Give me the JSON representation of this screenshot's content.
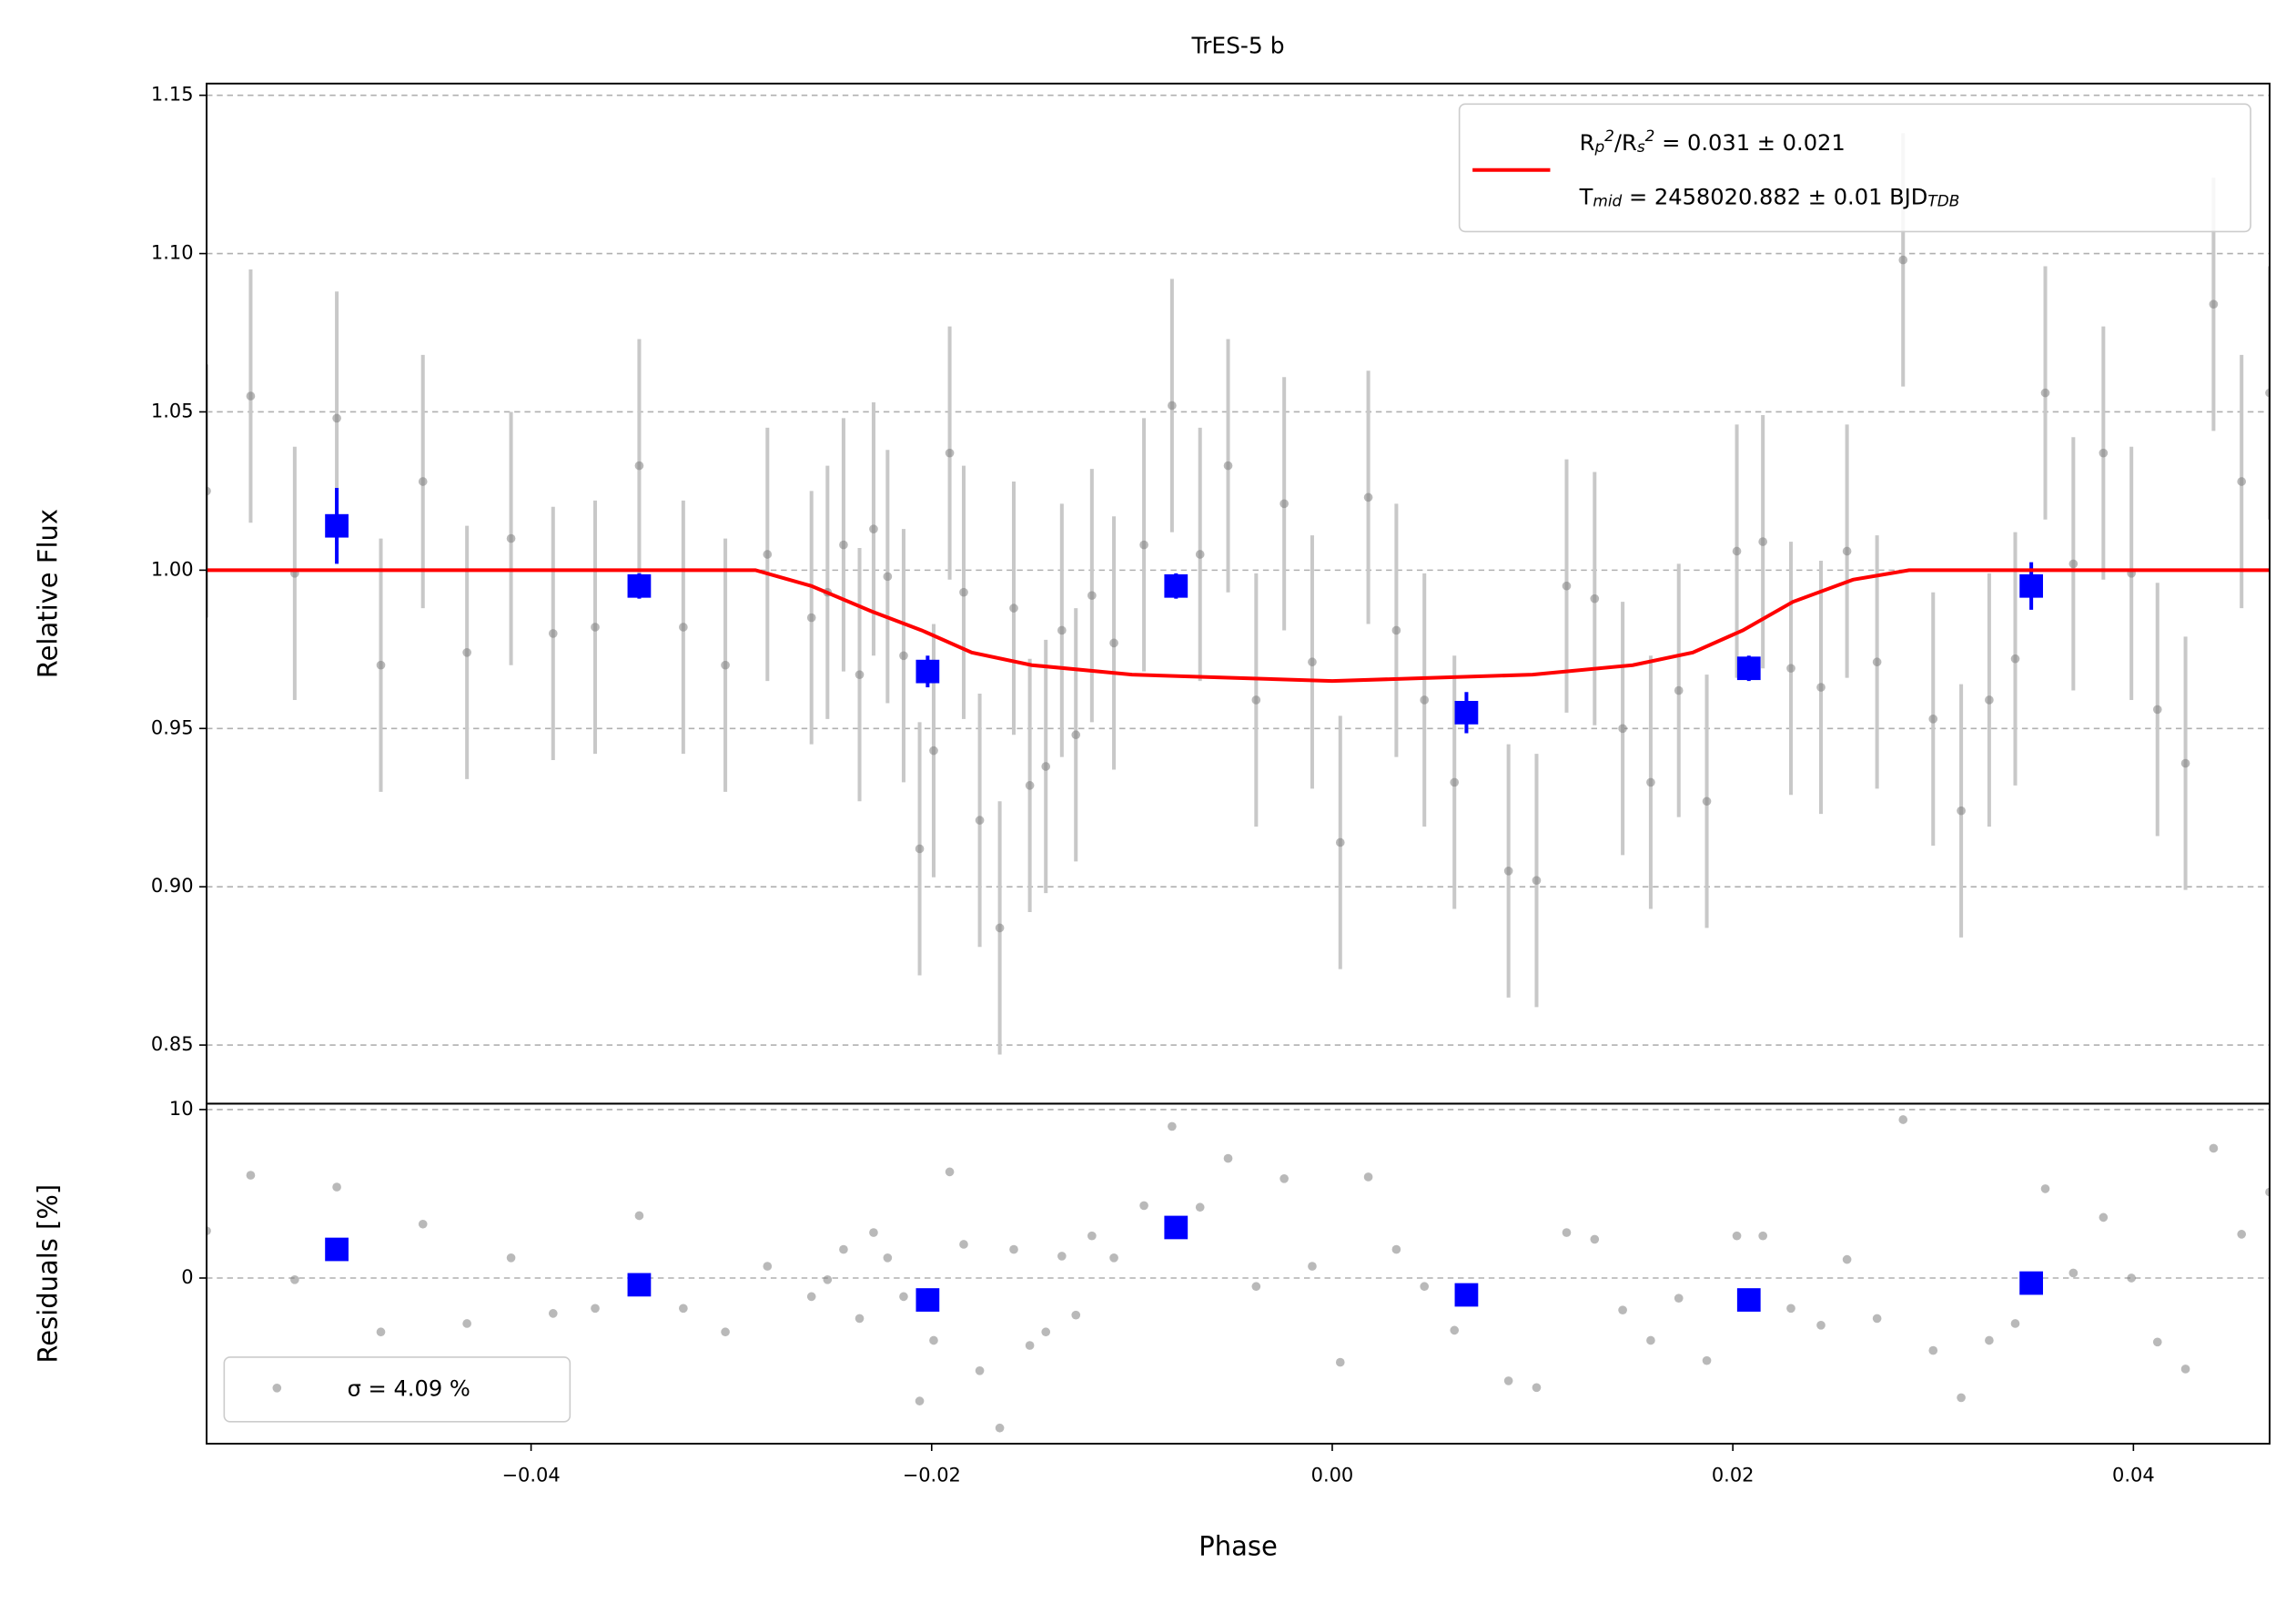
{
  "chart_data": [
    {
      "type": "scatter",
      "title": "TrES-5 b",
      "ylabel": "Relative Flux",
      "xlim": [
        -0.0562,
        0.0468
      ],
      "ylim": [
        0.8315,
        1.1537
      ],
      "yticks": [
        0.85,
        {
          "value": 0.9,
          "label": "0.90"
        },
        0.95,
        {
          "value": 1.0,
          "label": "1.00"
        },
        1.05,
        {
          "value": 1.1,
          "label": "1.10"
        },
        1.15
      ],
      "grid": true,
      "legend": "upper right",
      "series": [
        {
          "color": "#808080",
          "yerr": 0.04,
          "x": [
            -0.0562,
            -0.054,
            -0.0518,
            -0.0497,
            -0.0475,
            -0.0454,
            -0.0432,
            -0.041,
            -0.0389,
            -0.0368,
            -0.0346,
            -0.0324,
            -0.0303,
            -0.0282,
            -0.026,
            -0.0252,
            -0.0244,
            -0.0236,
            -0.0229,
            -0.0222,
            -0.0214,
            -0.0206,
            -0.0199,
            -0.0191,
            -0.0184,
            -0.0176,
            -0.0166,
            -0.0159,
            -0.0151,
            -0.0143,
            -0.0135,
            -0.0128,
            -0.012,
            -0.0109,
            -0.0094,
            -0.008,
            -0.0066,
            -0.0052,
            -0.0038,
            -0.0024,
            -0.001,
            0.0004,
            0.0018,
            0.0032,
            0.0046,
            0.0061,
            0.0088,
            0.0102,
            0.0117,
            0.0131,
            0.0145,
            0.0159,
            0.0173,
            0.0187,
            0.0202,
            0.0215,
            0.0229,
            0.0244,
            0.0257,
            0.0272,
            0.0285,
            0.03,
            0.0314,
            0.0328,
            0.0341,
            0.0356,
            0.037,
            0.0385,
            0.0399,
            0.0412,
            0.0426,
            0.044,
            0.0454,
            0.0468
          ],
          "values": [
            1.025,
            1.055,
            0.999,
            1.048,
            0.97,
            1.028,
            0.974,
            1.01,
            0.98,
            0.982,
            1.033,
            0.982,
            0.97,
            1.005,
            0.985,
            0.993,
            1.008,
            0.967,
            1.013,
            0.998,
            0.973,
            0.912,
            0.943,
            1.037,
            0.993,
            0.921,
            0.887,
            0.988,
            0.932,
            0.938,
            0.981,
            0.948,
            0.992,
            0.977,
            1.008,
            1.052,
            1.005,
            1.033,
            0.959,
            1.021,
            0.971,
            0.914,
            1.023,
            0.981,
            0.959,
            0.933,
            0.905,
            0.902,
            0.995,
            0.991,
            0.95,
            0.933,
            0.962,
            0.927,
            1.006,
            1.009,
            0.969,
            0.963,
            1.006,
            0.971,
            1.098,
            0.953,
            0.924,
            0.959,
            0.972,
            1.056,
            1.002,
            1.037,
            0.999,
            0.956,
            0.939,
            1.084,
            1.028,
            1.056
          ]
        },
        {
          "color": "#0000ff",
          "x": [
            -0.0497,
            -0.0346,
            -0.0202,
            -0.0078,
            0.0067,
            0.0208,
            0.0349
          ],
          "values": [
            1.014,
            0.995,
            0.968,
            0.995,
            0.955,
            0.969,
            0.995
          ],
          "yerr": [
            0.012,
            0.004,
            0.005,
            0.004,
            0.0065,
            0.004,
            0.0075
          ]
        },
        {
          "name": [
            "R_p^2/R_s^2 = 0.031 ± 0.021",
            "T_mid = 2458020.882 ± 0.01 BJD_TDB"
          ],
          "color": "#ff0000",
          "x": [
            -0.0562,
            -0.0288,
            -0.026,
            -0.023,
            -0.0205,
            -0.018,
            -0.015,
            -0.01,
            -0.005,
            0,
            0.005,
            0.01,
            0.015,
            0.018,
            0.0205,
            0.023,
            0.026,
            0.0288,
            0.0468
          ],
          "values": [
            1,
            1,
            0.995,
            0.987,
            0.981,
            0.974,
            0.97,
            0.967,
            0.966,
            0.965,
            0.966,
            0.967,
            0.97,
            0.974,
            0.981,
            0.99,
            0.997,
            1,
            1
          ]
        }
      ]
    },
    {
      "type": "scatter",
      "xlabel": "Phase",
      "ylabel": "Residuals [%]",
      "xlim": [
        -0.0562,
        0.0468
      ],
      "ylim": [
        -9.83,
        10.35
      ],
      "xticks": [
        {
          "value": -0.04,
          "label": "−0.04"
        },
        {
          "value": -0.02,
          "label": "−0.02"
        },
        {
          "value": 0,
          "label": "0.00"
        },
        0.02,
        0.04
      ],
      "yticks": [
        0,
        10
      ],
      "grid": true,
      "legend": "lower left",
      "series": [
        {
          "name": "σ = 4.09 %",
          "color": "#808080",
          "x": [
            -0.0562,
            -0.054,
            -0.0518,
            -0.0497,
            -0.0475,
            -0.0454,
            -0.0432,
            -0.041,
            -0.0389,
            -0.0368,
            -0.0346,
            -0.0324,
            -0.0303,
            -0.0282,
            -0.026,
            -0.0252,
            -0.0244,
            -0.0236,
            -0.0229,
            -0.0222,
            -0.0214,
            -0.0206,
            -0.0199,
            -0.0191,
            -0.0184,
            -0.0176,
            -0.0166,
            -0.0159,
            -0.0151,
            -0.0143,
            -0.0135,
            -0.0128,
            -0.012,
            -0.0109,
            -0.0094,
            -0.008,
            -0.0066,
            -0.0052,
            -0.0038,
            -0.0024,
            -0.001,
            0.0004,
            0.0018,
            0.0032,
            0.0046,
            0.0061,
            0.0088,
            0.0102,
            0.0117,
            0.0131,
            0.0145,
            0.0159,
            0.0173,
            0.0187,
            0.0202,
            0.0215,
            0.0229,
            0.0244,
            0.0257,
            0.0272,
            0.0285,
            0.03,
            0.0314,
            0.0328,
            0.0341,
            0.0356,
            0.037,
            0.0385,
            0.0399,
            0.0412,
            0.0426,
            0.044,
            0.0454,
            0.0468
          ],
          "values": [
            2.8,
            6.1,
            -0.1,
            5.4,
            -3.2,
            3.2,
            -2.7,
            1.2,
            -2.1,
            -1.8,
            3.7,
            -1.8,
            -3.2,
            0.7,
            -1.1,
            -0.1,
            1.7,
            -2.4,
            2.7,
            1.2,
            -1.1,
            -7.3,
            -3.7,
            6.3,
            2.0,
            -5.5,
            -8.9,
            1.7,
            -4.0,
            -3.2,
            1.3,
            -2.2,
            2.5,
            1.2,
            4.3,
            9.0,
            4.2,
            7.1,
            -0.5,
            5.9,
            0.7,
            -5.0,
            6.0,
            1.7,
            -0.5,
            -3.1,
            -6.1,
            -6.5,
            2.7,
            2.3,
            -1.9,
            -3.7,
            -1.2,
            -4.9,
            2.5,
            2.5,
            -1.8,
            -2.8,
            1.1,
            -2.4,
            9.4,
            -4.3,
            -7.1,
            -3.7,
            -2.7,
            5.3,
            0.3,
            3.6,
            0.0,
            -3.8,
            -5.4,
            7.7,
            2.6,
            5.1
          ]
        },
        {
          "color": "#0000ff",
          "x": [
            -0.0497,
            -0.0346,
            -0.0202,
            -0.0078,
            0.0067,
            0.0208,
            0.0349
          ],
          "values": [
            1.7,
            -0.4,
            -1.3,
            3.0,
            -1.0,
            -1.3,
            -0.3
          ]
        }
      ]
    }
  ]
}
